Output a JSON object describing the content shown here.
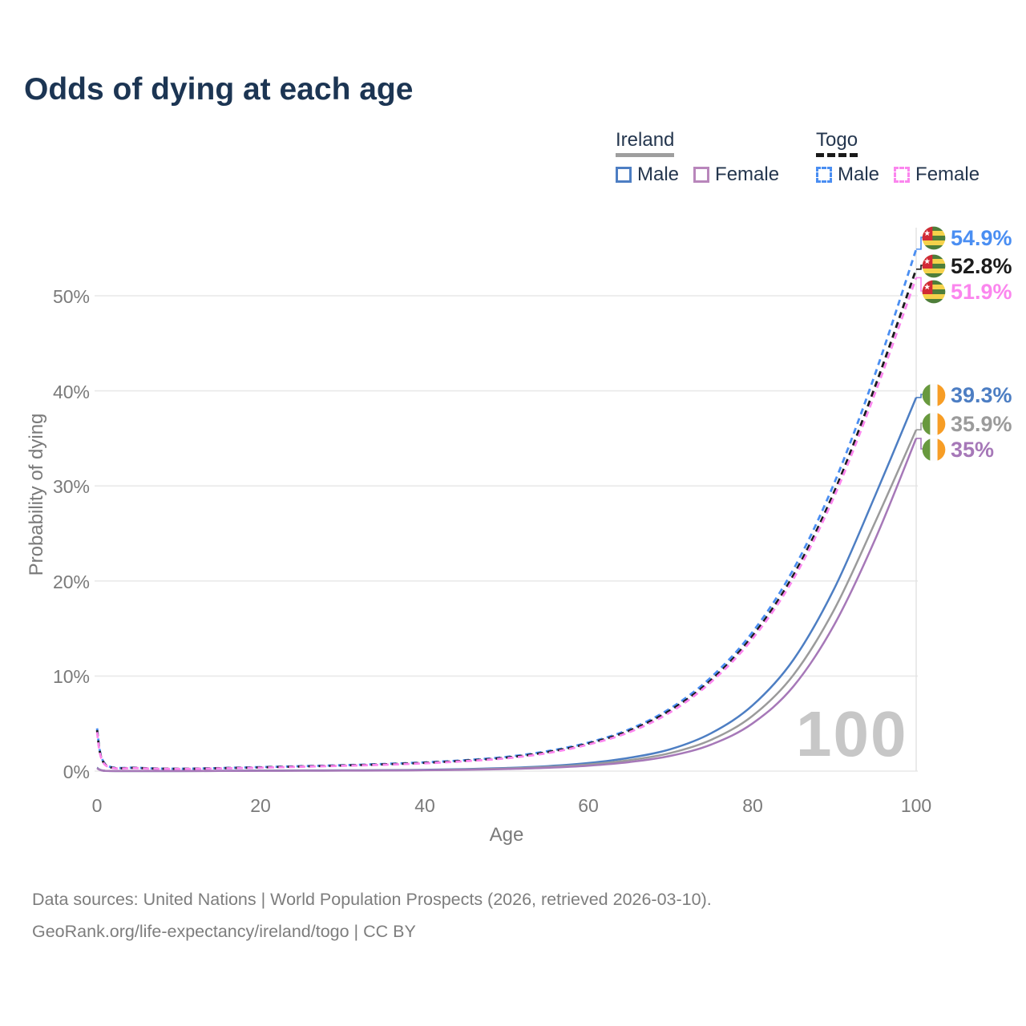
{
  "title": "Odds of dying at each age",
  "legend": {
    "groups": [
      {
        "label": "Ireland",
        "underline_style": "solid",
        "underline_color": "#9e9e9e",
        "items": [
          {
            "label": "Male",
            "color": "#4d7ec3",
            "dashed": false
          },
          {
            "label": "Female",
            "color": "#b886bb",
            "dashed": false
          }
        ]
      },
      {
        "label": "Togo",
        "underline_style": "dashed",
        "underline_color": "#1a1a1a",
        "items": [
          {
            "label": "Male",
            "color": "#4a8ef2",
            "dashed": true
          },
          {
            "label": "Female",
            "color": "#fb86ee",
            "dashed": true
          }
        ]
      }
    ]
  },
  "axes": {
    "y_title": "Probability of dying",
    "y_ticks": [
      "0%",
      "10%",
      "20%",
      "30%",
      "40%",
      "50%"
    ],
    "y_tick_values": [
      0,
      10,
      20,
      30,
      40,
      50
    ],
    "x_title": "Age",
    "x_ticks": [
      "0",
      "20",
      "40",
      "60",
      "80",
      "100"
    ],
    "x_tick_values": [
      0,
      20,
      40,
      60,
      80,
      100
    ]
  },
  "watermark": "100",
  "end_labels": [
    {
      "text": "54.9%",
      "color": "#4a8ef2",
      "flag": "togo-flag"
    },
    {
      "text": "52.8%",
      "color": "#1c1c1c",
      "flag": "togo-flag"
    },
    {
      "text": "51.9%",
      "color": "#fb86ee",
      "flag": "togo-flag"
    },
    {
      "text": "39.3%",
      "color": "#4d7ec3",
      "flag": "ireland-flag"
    },
    {
      "text": "35.9%",
      "color": "#9b9b9b",
      "flag": "ireland-flag"
    },
    {
      "text": "35%",
      "color": "#a678b8",
      "flag": "ireland-flag"
    }
  ],
  "footer": {
    "line1": "Data sources: United Nations | World Population Prospects (2026, retrieved 2026-03-10).",
    "line2": "GeoRank.org/life-expectancy/ireland/togo | CC BY"
  },
  "chart_data": {
    "type": "line",
    "title": "Odds of dying at each age",
    "xlabel": "Age",
    "ylabel": "Probability of dying",
    "xlim": [
      0,
      100
    ],
    "ylim": [
      0,
      57
    ],
    "grid": "horizontal",
    "legend_position": "top-right",
    "x": [
      0,
      1,
      5,
      10,
      15,
      20,
      25,
      30,
      35,
      40,
      45,
      50,
      55,
      60,
      65,
      70,
      75,
      80,
      85,
      90,
      95,
      100
    ],
    "series": [
      {
        "name": "Togo Male",
        "color": "#4a8ef2",
        "dashed": true,
        "values": [
          4.5,
          0.75,
          0.35,
          0.25,
          0.32,
          0.42,
          0.52,
          0.62,
          0.75,
          0.92,
          1.15,
          1.5,
          2.1,
          3.0,
          4.4,
          6.6,
          9.9,
          14.6,
          21.2,
          30.3,
          41.8,
          54.9
        ]
      },
      {
        "name": "Togo (both sexes)",
        "color": "#1c1c1c",
        "dashed": true,
        "values": [
          4.3,
          0.7,
          0.33,
          0.24,
          0.3,
          0.39,
          0.49,
          0.59,
          0.71,
          0.87,
          1.1,
          1.42,
          2.0,
          2.9,
          4.25,
          6.4,
          9.6,
          14.2,
          20.6,
          29.4,
          40.5,
          52.8
        ]
      },
      {
        "name": "Togo Female",
        "color": "#fb86ee",
        "dashed": true,
        "values": [
          4.1,
          0.65,
          0.31,
          0.23,
          0.28,
          0.36,
          0.46,
          0.56,
          0.67,
          0.82,
          1.05,
          1.35,
          1.9,
          2.8,
          4.1,
          6.2,
          9.4,
          13.9,
          20.2,
          28.9,
          39.8,
          51.9
        ]
      },
      {
        "name": "Ireland Male",
        "color": "#4d7ec3",
        "dashed": false,
        "values": [
          0.35,
          0.03,
          0.01,
          0.01,
          0.03,
          0.06,
          0.07,
          0.08,
          0.1,
          0.14,
          0.21,
          0.33,
          0.52,
          0.85,
          1.4,
          2.3,
          4.0,
          6.9,
          11.7,
          19.2,
          29.0,
          39.3
        ]
      },
      {
        "name": "Ireland (both sexes)",
        "color": "#9b9b9b",
        "dashed": false,
        "values": [
          0.32,
          0.03,
          0.01,
          0.01,
          0.02,
          0.04,
          0.05,
          0.06,
          0.08,
          0.11,
          0.17,
          0.27,
          0.43,
          0.7,
          1.15,
          1.9,
          3.3,
          5.8,
          10.1,
          17.0,
          26.2,
          35.9
        ]
      },
      {
        "name": "Ireland Female",
        "color": "#a678b8",
        "dashed": false,
        "values": [
          0.3,
          0.02,
          0.01,
          0.01,
          0.02,
          0.03,
          0.04,
          0.05,
          0.06,
          0.09,
          0.14,
          0.22,
          0.35,
          0.57,
          0.95,
          1.6,
          2.8,
          5.0,
          8.9,
          15.4,
          24.4,
          35.0
        ]
      }
    ],
    "end_values": {
      "togo_male": 54.9,
      "togo_total": 52.8,
      "togo_female": 51.9,
      "ireland_male": 39.3,
      "ireland_total": 35.9,
      "ireland_female": 35.0
    },
    "current_age_indicator": 100
  }
}
